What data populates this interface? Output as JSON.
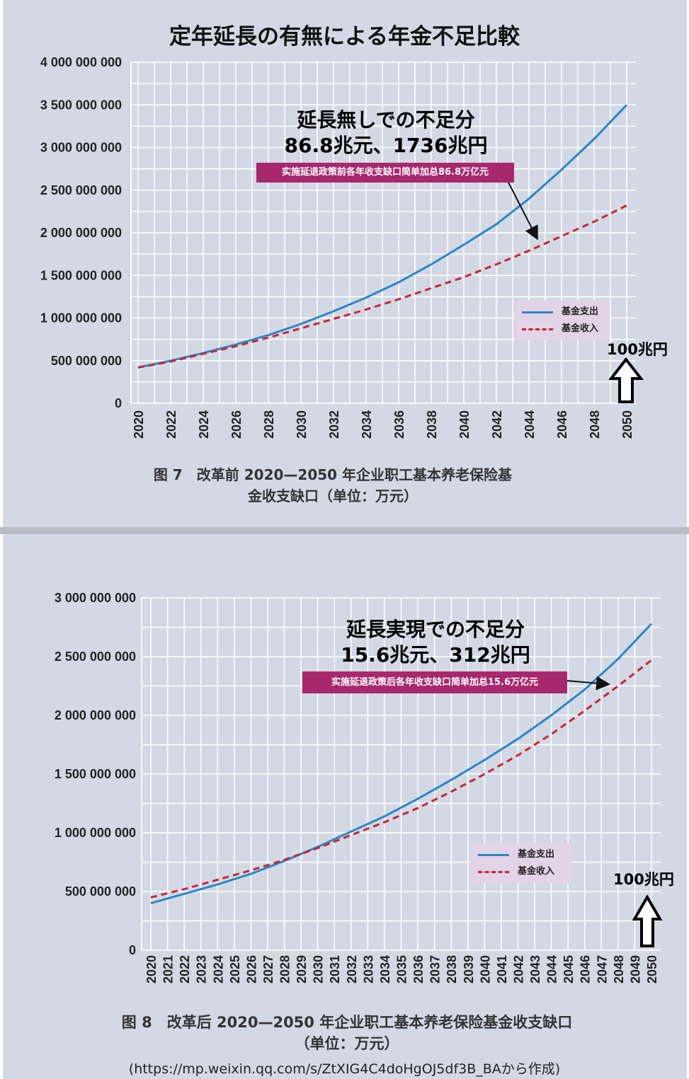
{
  "title": "定年延長の有無による年金不足比較",
  "source": "(https://mp.weixin.qq.com/s/ZtXIG4C4doHgOJ5df3B_BAから作成)",
  "chart_data": [
    {
      "type": "line",
      "caption": "图 7　改革前 2020—2050 年企业职工基本养老保险基金收支缺口（单位：万元）",
      "caption_lines": [
        "图 7　改革前 2020—2050 年企业职工基本养老保险基",
        "金收支缺口（单位：万元）"
      ],
      "ylim": [
        0,
        4000000000
      ],
      "yticks": [
        "0",
        "500 000 000",
        "1 000 000 000",
        "1 500 000 000",
        "2 000 000 000",
        "2 500 000 000",
        "3 000 000 000",
        "3 500 000 000",
        "4 000 000 000"
      ],
      "xticks": [
        "2020",
        "2022",
        "2024",
        "2026",
        "2028",
        "2030",
        "2032",
        "2034",
        "2036",
        "2038",
        "2040",
        "2042",
        "2044",
        "2046",
        "2048",
        "2050"
      ],
      "x": [
        2020,
        2022,
        2024,
        2026,
        2028,
        2030,
        2032,
        2034,
        2036,
        2038,
        2040,
        2042,
        2044,
        2046,
        2048,
        2050
      ],
      "series": [
        {
          "name": "基金支出",
          "color": "#2a86c6",
          "style": "solid",
          "values": [
            420000000,
            500000000,
            590000000,
            690000000,
            800000000,
            930000000,
            1080000000,
            1240000000,
            1420000000,
            1630000000,
            1860000000,
            2100000000,
            2400000000,
            2740000000,
            3100000000,
            3500000000
          ]
        },
        {
          "name": "基金收入",
          "color": "#cc2233",
          "style": "dashed",
          "values": [
            420000000,
            490000000,
            580000000,
            670000000,
            770000000,
            880000000,
            990000000,
            1100000000,
            1220000000,
            1350000000,
            1480000000,
            1630000000,
            1790000000,
            1960000000,
            2130000000,
            2320000000
          ]
        }
      ],
      "annotation_jp": [
        "延長無しでの不足分",
        "86.8兆元、1736兆円"
      ],
      "annotation_cn": "实施延退政策前各年收支缺口简单加总86.8万亿元",
      "marker_label": "100兆円"
    },
    {
      "type": "line",
      "caption": "图 8　改革后 2020—2050 年企业职工基本养老保险基金收支缺口（单位：万元）",
      "caption_lines": [
        "图 8　改革后 2020—2050 年企业职工基本养老保险基金收支缺口",
        "（单位：万元）"
      ],
      "ylim": [
        0,
        3000000000
      ],
      "yticks": [
        "0",
        "500 000 000",
        "1 000 000 000",
        "1 500 000 000",
        "2 000 000 000",
        "2 500 000 000",
        "3 000 000 000"
      ],
      "xticks": [
        "2020",
        "2021",
        "2022",
        "2023",
        "2024",
        "2025",
        "2026",
        "2027",
        "2028",
        "2029",
        "2030",
        "2031",
        "2032",
        "2033",
        "2034",
        "2035",
        "2036",
        "2037",
        "2038",
        "2039",
        "2040",
        "2041",
        "2042",
        "2043",
        "2044",
        "2045",
        "2046",
        "2047",
        "2048",
        "2049",
        "2050"
      ],
      "x": [
        2020,
        2022,
        2024,
        2026,
        2028,
        2030,
        2032,
        2034,
        2036,
        2038,
        2040,
        2042,
        2044,
        2046,
        2048,
        2050
      ],
      "series": [
        {
          "name": "基金支出",
          "color": "#2a86c6",
          "style": "solid",
          "values": [
            400000000,
            480000000,
            560000000,
            650000000,
            760000000,
            880000000,
            1010000000,
            1140000000,
            1290000000,
            1450000000,
            1620000000,
            1800000000,
            2000000000,
            2220000000,
            2480000000,
            2780000000
          ]
        },
        {
          "name": "基金收入",
          "color": "#cc2233",
          "style": "dashed",
          "values": [
            450000000,
            520000000,
            600000000,
            680000000,
            770000000,
            870000000,
            980000000,
            1090000000,
            1210000000,
            1350000000,
            1500000000,
            1660000000,
            1840000000,
            2040000000,
            2250000000,
            2470000000
          ]
        }
      ],
      "annotation_jp": [
        "延長実現での不足分",
        "15.6兆元、312兆円"
      ],
      "annotation_cn": "实施延退政策后各年收支缺口简单加总15.6万亿元",
      "marker_label": "100兆円"
    }
  ]
}
